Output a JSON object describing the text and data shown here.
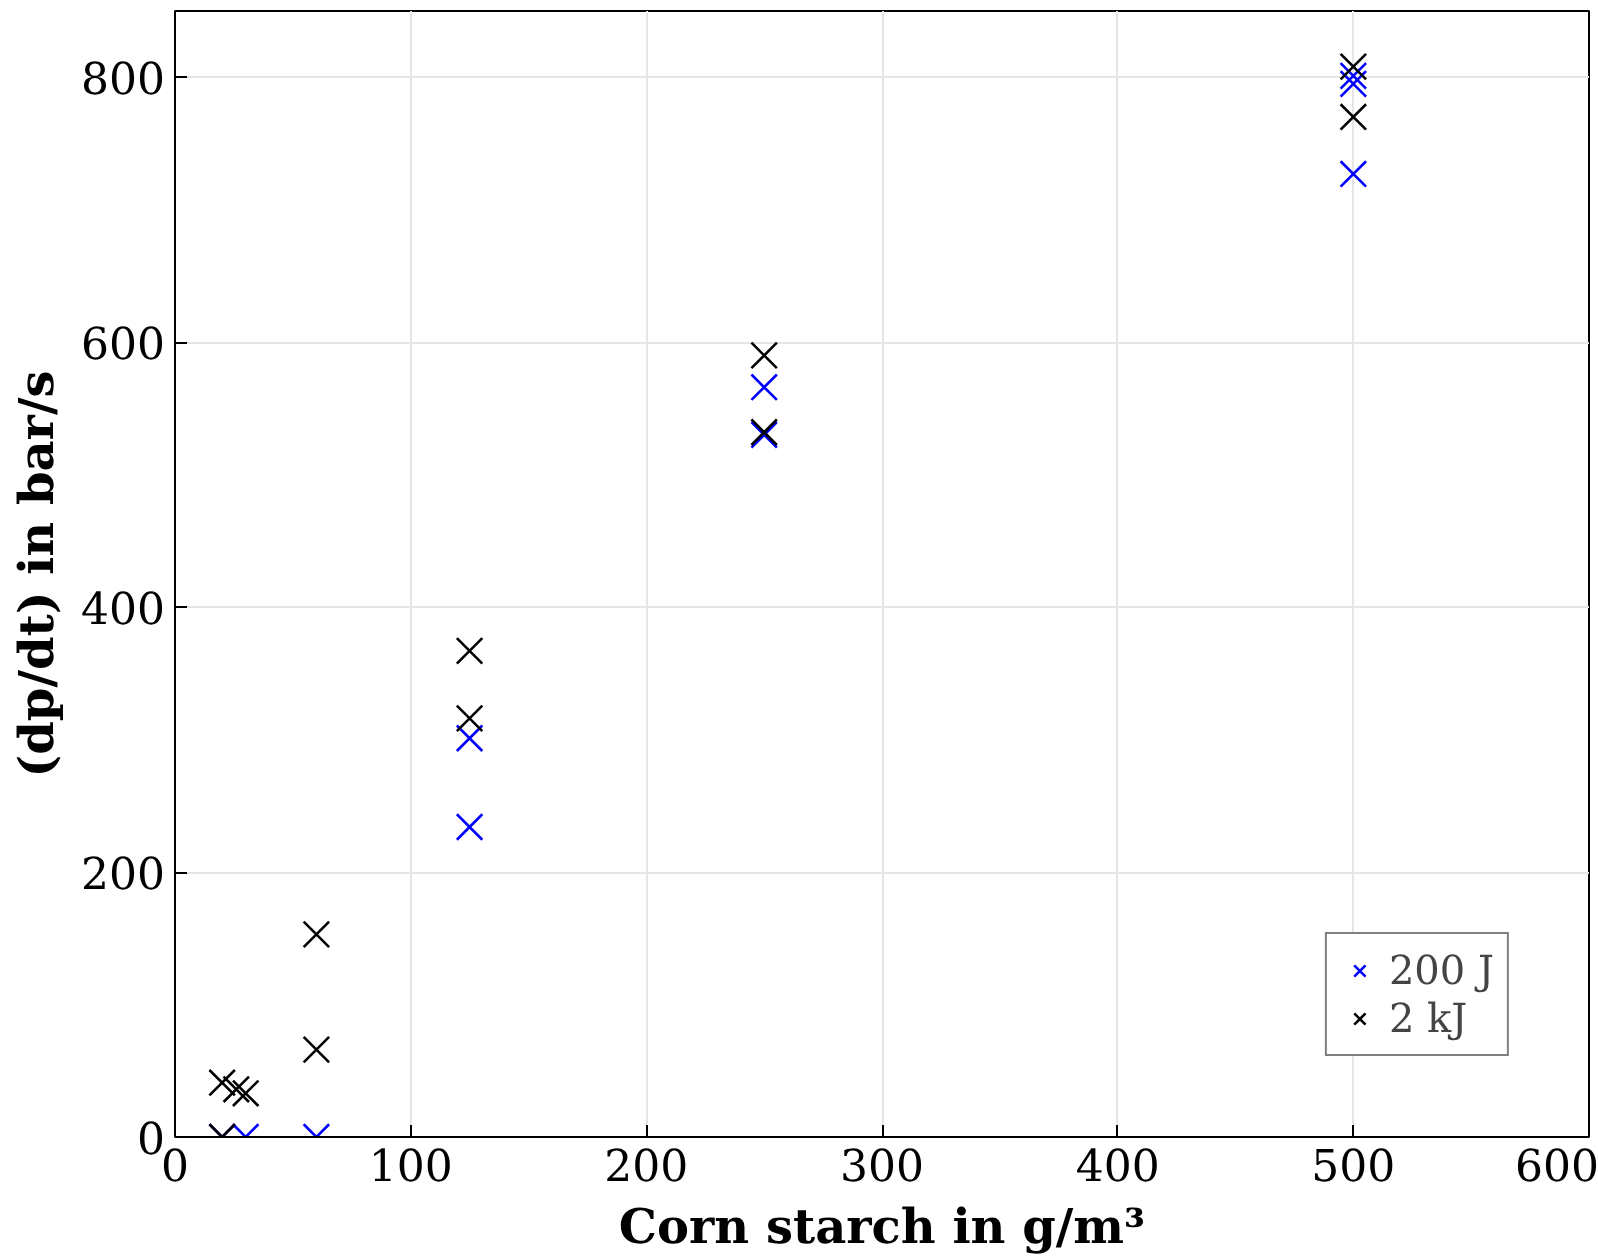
{
  "chart_data": {
    "type": "scatter",
    "xlabel": "Corn starch in g/m³",
    "ylabel": "(dp/dt) in bar/s",
    "xlim": [
      0,
      600
    ],
    "ylim": [
      0,
      850
    ],
    "xticks": [
      0,
      100,
      200,
      300,
      400,
      500,
      600
    ],
    "yticks": [
      0,
      200,
      400,
      600,
      800
    ],
    "grid": true,
    "legend": "bottom right",
    "marker": "cross",
    "series": [
      {
        "name": "200 J",
        "color": "#0000ff",
        "x": [
          20,
          30,
          60,
          125,
          125,
          250,
          250,
          500,
          500,
          500
        ],
        "values": [
          0,
          0,
          0,
          234,
          301,
          530,
          566,
          801,
          795,
          727
        ]
      },
      {
        "name": "2 kJ",
        "color": "#000000",
        "x": [
          20,
          20,
          26,
          30,
          60,
          60,
          125,
          125,
          250,
          250,
          500,
          500
        ],
        "values": [
          0,
          41,
          36,
          33,
          66,
          153,
          316,
          367,
          532,
          590,
          808,
          770
        ]
      }
    ]
  }
}
